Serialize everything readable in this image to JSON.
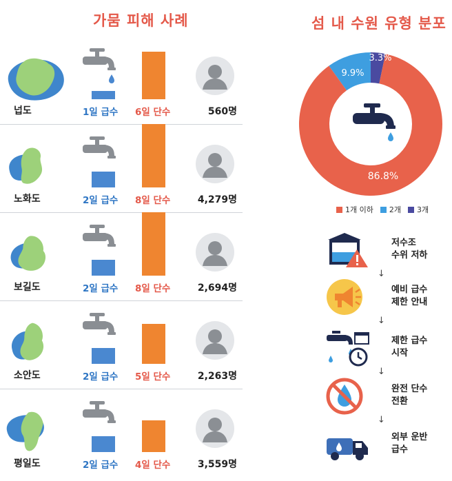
{
  "left_title": "가뭄 피해 사례",
  "right_title": "섬 내 수원 유형 분포",
  "colors": {
    "supply": "#4a88d0",
    "cut": "#ef8530",
    "accent": "#e4594a",
    "island": "#9dd17a",
    "water": "#3f86cc"
  },
  "islands": [
    {
      "name": "넙도",
      "supply_label": "1일 급수",
      "cut_label": "6일 단수",
      "supply_days": 1,
      "cut_days": 6,
      "people": "560명"
    },
    {
      "name": "노화도",
      "supply_label": "2일 급수",
      "cut_label": "8일 단수",
      "supply_days": 2,
      "cut_days": 8,
      "people": "4,279명"
    },
    {
      "name": "보길도",
      "supply_label": "2일 급수",
      "cut_label": "8일 단수",
      "supply_days": 2,
      "cut_days": 8,
      "people": "2,694명"
    },
    {
      "name": "소안도",
      "supply_label": "2일 급수",
      "cut_label": "5일 단수",
      "supply_days": 2,
      "cut_days": 5,
      "people": "2,263명"
    },
    {
      "name": "평일도",
      "supply_label": "2일 급수",
      "cut_label": "4일 단수",
      "supply_days": 2,
      "cut_days": 4,
      "people": "3,559명"
    }
  ],
  "chart_data": {
    "type": "pie",
    "title": "섬 내 수원 유형 분포",
    "labels": [
      "1개 이하",
      "2개",
      "3개"
    ],
    "values": [
      86.8,
      9.9,
      3.3
    ],
    "value_labels": [
      "86.8%",
      "9.9%",
      "3.3%"
    ],
    "colors": [
      "#e8624b",
      "#3e9ee0",
      "#4a4aa0"
    ],
    "legend_position": "bottom"
  },
  "steps": [
    {
      "line1": "저수조",
      "line2": "수위 저하",
      "icon": "reservoir-warning-icon"
    },
    {
      "line1": "예비 급수",
      "line2": "제한 안내",
      "icon": "megaphone-icon"
    },
    {
      "line1": "제한 급수",
      "line2": "시작",
      "icon": "faucet-clock-icon"
    },
    {
      "line1": "완전 단수",
      "line2": "전환",
      "icon": "no-water-icon"
    },
    {
      "line1": "외부 운반",
      "line2": "급수",
      "icon": "water-truck-icon"
    }
  ],
  "arrow_glyph": "↓"
}
